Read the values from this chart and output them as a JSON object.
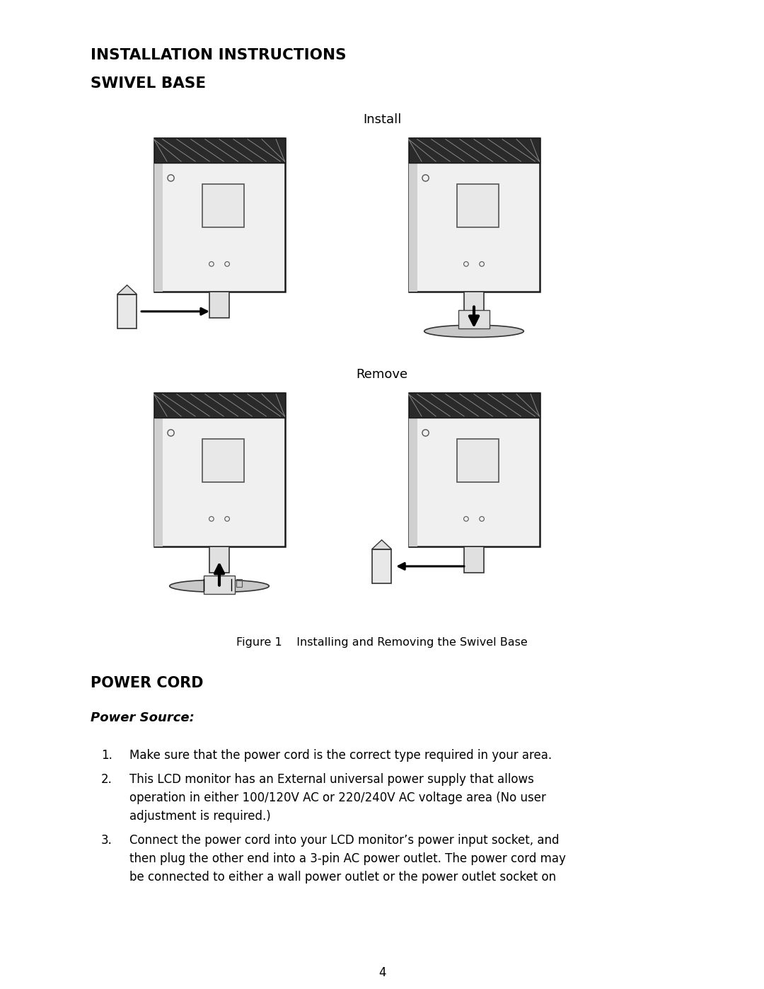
{
  "title_main": "INSTALLATION INSTRUCTIONS",
  "title_sub": "SWIVEL BASE",
  "label_install": "Install",
  "label_remove": "Remove",
  "figure_caption": "Figure 1    Installing and Removing the Swivel Base",
  "section_power_cord": "POWER CORD",
  "section_power_source": "Power Source:",
  "item1": "Make sure that the power cord is the correct type required in your area.",
  "item2_line1": "This LCD monitor has an External universal power supply that allows",
  "item2_line2": "operation in either 100/120V AC or 220/240V AC voltage area (No user",
  "item2_line3": "adjustment is required.)",
  "item3_line1": "Connect the power cord into your LCD monitor’s power input socket, and",
  "item3_line2": "then plug the other end into a 3-pin AC power outlet. The power cord may",
  "item3_line3": "be connected to either a wall power outlet or the power outlet socket on",
  "page_number": "4",
  "bg_color": "#ffffff",
  "text_color": "#000000"
}
